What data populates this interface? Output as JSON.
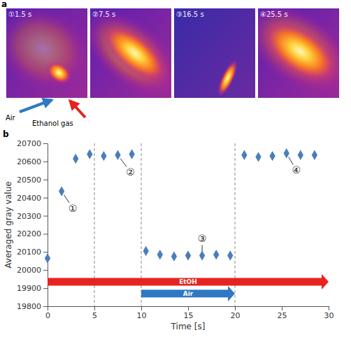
{
  "panel_a": {
    "letter": "a",
    "images": [
      "①1.5 s",
      "②7.5 s",
      "③16.5 s",
      "④25.5 s"
    ],
    "air_label": "Air",
    "ethanol_label": "Ethanol gas"
  },
  "chart_data": {
    "type": "scatter",
    "panel_label": "b",
    "xlabel": "Time [s]",
    "ylabel": "Averaged gray value",
    "x": [
      0,
      1.5,
      3,
      4.5,
      6,
      7.5,
      9,
      10.5,
      12,
      13.5,
      15,
      16.5,
      18,
      19.5,
      21,
      22.5,
      24,
      25.5,
      27,
      28.5
    ],
    "values": [
      20065,
      20435,
      20615,
      20640,
      20630,
      20635,
      20640,
      20105,
      20085,
      20075,
      20080,
      20080,
      20085,
      20080,
      20635,
      20625,
      20630,
      20645,
      20635,
      20635
    ],
    "color": "#4a7ebb",
    "marker": "diamond",
    "xlim": [
      0,
      30
    ],
    "xticks": [
      0,
      5,
      10,
      15,
      20,
      25,
      30
    ],
    "ylim": [
      19800,
      20700
    ],
    "yticks": [
      19800,
      19900,
      20000,
      20100,
      20200,
      20300,
      20400,
      20500,
      20600,
      20700
    ],
    "grid": false,
    "vlines": [
      5,
      10,
      20
    ],
    "annotations": [
      {
        "text": "①",
        "x": 1.5,
        "y": 20435
      },
      {
        "text": "②",
        "x": 7.5,
        "y": 20635
      },
      {
        "text": "③",
        "x": 16.5,
        "y": 20080
      },
      {
        "text": "④",
        "x": 25.5,
        "y": 20645
      }
    ],
    "arrows": [
      {
        "text": "EtOH",
        "x": [
          0,
          30
        ],
        "y": 19935,
        "color": "#e8231f"
      },
      {
        "text": "Air",
        "x": [
          10,
          20
        ],
        "y": 19870,
        "color": "#2f78c4"
      }
    ]
  }
}
